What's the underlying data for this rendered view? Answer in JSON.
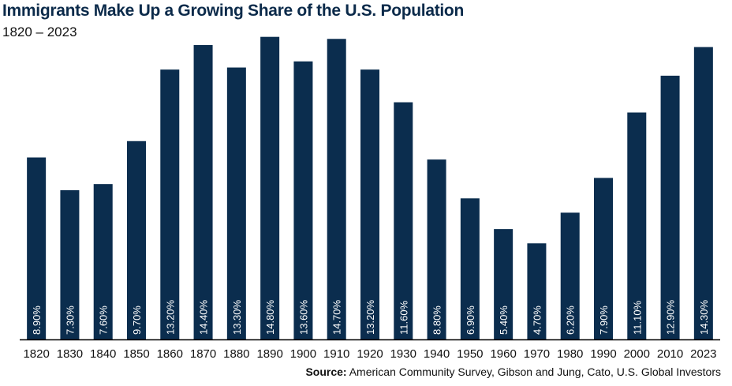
{
  "title": "Immigrants Make Up a Growing Share of the U.S. Population",
  "subtitle": "1820 – 2023",
  "source": {
    "label": "Source:",
    "text": "American Community Survey, Gibson and Jung, Cato, U.S. Global Investors"
  },
  "colors": {
    "bar": "#0b2d4e",
    "axis": "#000000",
    "label": "#ffffff"
  },
  "chart_data": {
    "type": "bar",
    "title": "Immigrants Make Up a Growing Share of the U.S. Population",
    "subtitle": "1820 – 2023",
    "xlabel": "",
    "ylabel": "",
    "ylim": [
      0,
      15
    ],
    "grid": false,
    "legend": "none",
    "categories": [
      "1820",
      "1830",
      "1840",
      "1850",
      "1860",
      "1870",
      "1880",
      "1890",
      "1900",
      "1910",
      "1920",
      "1930",
      "1940",
      "1950",
      "1960",
      "1970",
      "1980",
      "1990",
      "2000",
      "2010",
      "2023"
    ],
    "values": [
      8.9,
      7.3,
      7.6,
      9.7,
      13.2,
      14.4,
      13.3,
      14.8,
      13.6,
      14.7,
      13.2,
      11.6,
      8.8,
      6.9,
      5.4,
      4.7,
      6.2,
      7.9,
      11.1,
      12.9,
      14.3
    ],
    "value_labels": [
      "8.90%",
      "7.30%",
      "7.60%",
      "9.70%",
      "13.20%",
      "14.40%",
      "13.30%",
      "14.80%",
      "13.60%",
      "14.70%",
      "13.20%",
      "11.60%",
      "8.80%",
      "6.90%",
      "5.40%",
      "4.70%",
      "6.20%",
      "7.90%",
      "11.10%",
      "12.90%",
      "14.30%"
    ]
  }
}
